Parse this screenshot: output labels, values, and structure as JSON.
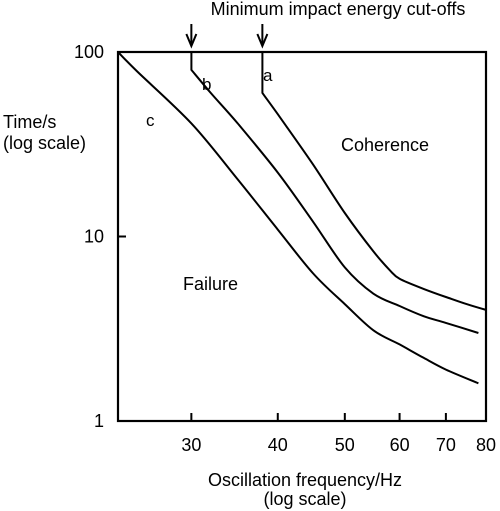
{
  "chart_data": {
    "type": "line",
    "title": "Minimum impact energy cut-offs",
    "xlabel": "Oscillation frequency/Hz",
    "xlabel_sub": "(log scale)",
    "ylabel": "Time/s",
    "ylabel_sub": "(log scale)",
    "x_scale": "log",
    "y_scale": "log",
    "xlim": [
      23.5,
      80
    ],
    "ylim": [
      1,
      100
    ],
    "x_ticks": [
      30,
      40,
      50,
      60,
      70,
      80
    ],
    "y_ticks": [
      1,
      10,
      100
    ],
    "grid": false,
    "legend": "none",
    "cutoff_markers": [
      30,
      38
    ],
    "series": [
      {
        "label": "a",
        "x": [
          38,
          38,
          40,
          45,
          50,
          55,
          58,
          60,
          65,
          70,
          75,
          80
        ],
        "y": [
          100,
          60,
          46,
          24.5,
          13.4,
          8.3,
          6.6,
          5.9,
          5.2,
          4.7,
          4.3,
          4.0
        ]
      },
      {
        "label": "b",
        "x": [
          30,
          30,
          32,
          35,
          40,
          45,
          50,
          55,
          60,
          65,
          70,
          78
        ],
        "y": [
          100,
          80,
          60,
          41,
          22.2,
          12.0,
          6.8,
          4.9,
          4.2,
          3.7,
          3.4,
          3.0
        ]
      },
      {
        "label": "c",
        "x": [
          23.5,
          25,
          30,
          35,
          40,
          45,
          50,
          55,
          60,
          65,
          70,
          78
        ],
        "y": [
          100,
          79,
          41,
          20.4,
          10.9,
          6.3,
          4.3,
          3.1,
          2.6,
          2.2,
          1.9,
          1.6
        ]
      }
    ],
    "curve_labels": [
      "a",
      "b",
      "c"
    ],
    "region_labels": [
      "Coherence",
      "Failure"
    ]
  }
}
